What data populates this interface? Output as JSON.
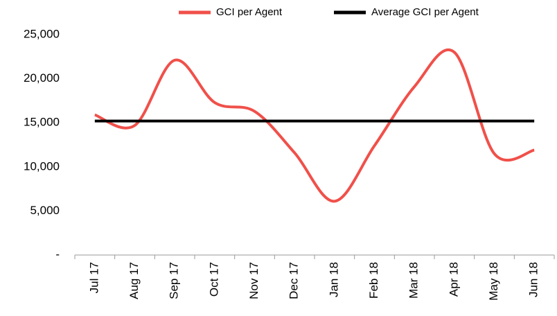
{
  "chart_data": {
    "type": "line",
    "categories": [
      "Jul 17",
      "Aug 17",
      "Sep 17",
      "Oct 17",
      "Nov 17",
      "Dec 17",
      "Jan 18",
      "Feb 18",
      "Mar 18",
      "Apr 18",
      "May 18",
      "Jun 18"
    ],
    "series": [
      {
        "name": "GCI per Agent",
        "color": "#f0504a",
        "values": [
          15900,
          14700,
          22100,
          17300,
          16300,
          11600,
          6100,
          12400,
          19100,
          23000,
          11500,
          11900
        ]
      },
      {
        "name": "Average GCI per Agent",
        "color": "#000000",
        "values": [
          15200,
          15200,
          15200,
          15200,
          15200,
          15200,
          15200,
          15200,
          15200,
          15200,
          15200,
          15200
        ]
      }
    ],
    "ylim": [
      0,
      25000
    ],
    "yticks": [
      {
        "value": 0,
        "label": "-"
      },
      {
        "value": 5000,
        "label": "5,000"
      },
      {
        "value": 10000,
        "label": "10,000"
      },
      {
        "value": 15000,
        "label": "15,000"
      },
      {
        "value": 20000,
        "label": "20,000"
      },
      {
        "value": 25000,
        "label": "25,000"
      }
    ],
    "grid": false,
    "legend": "top"
  }
}
